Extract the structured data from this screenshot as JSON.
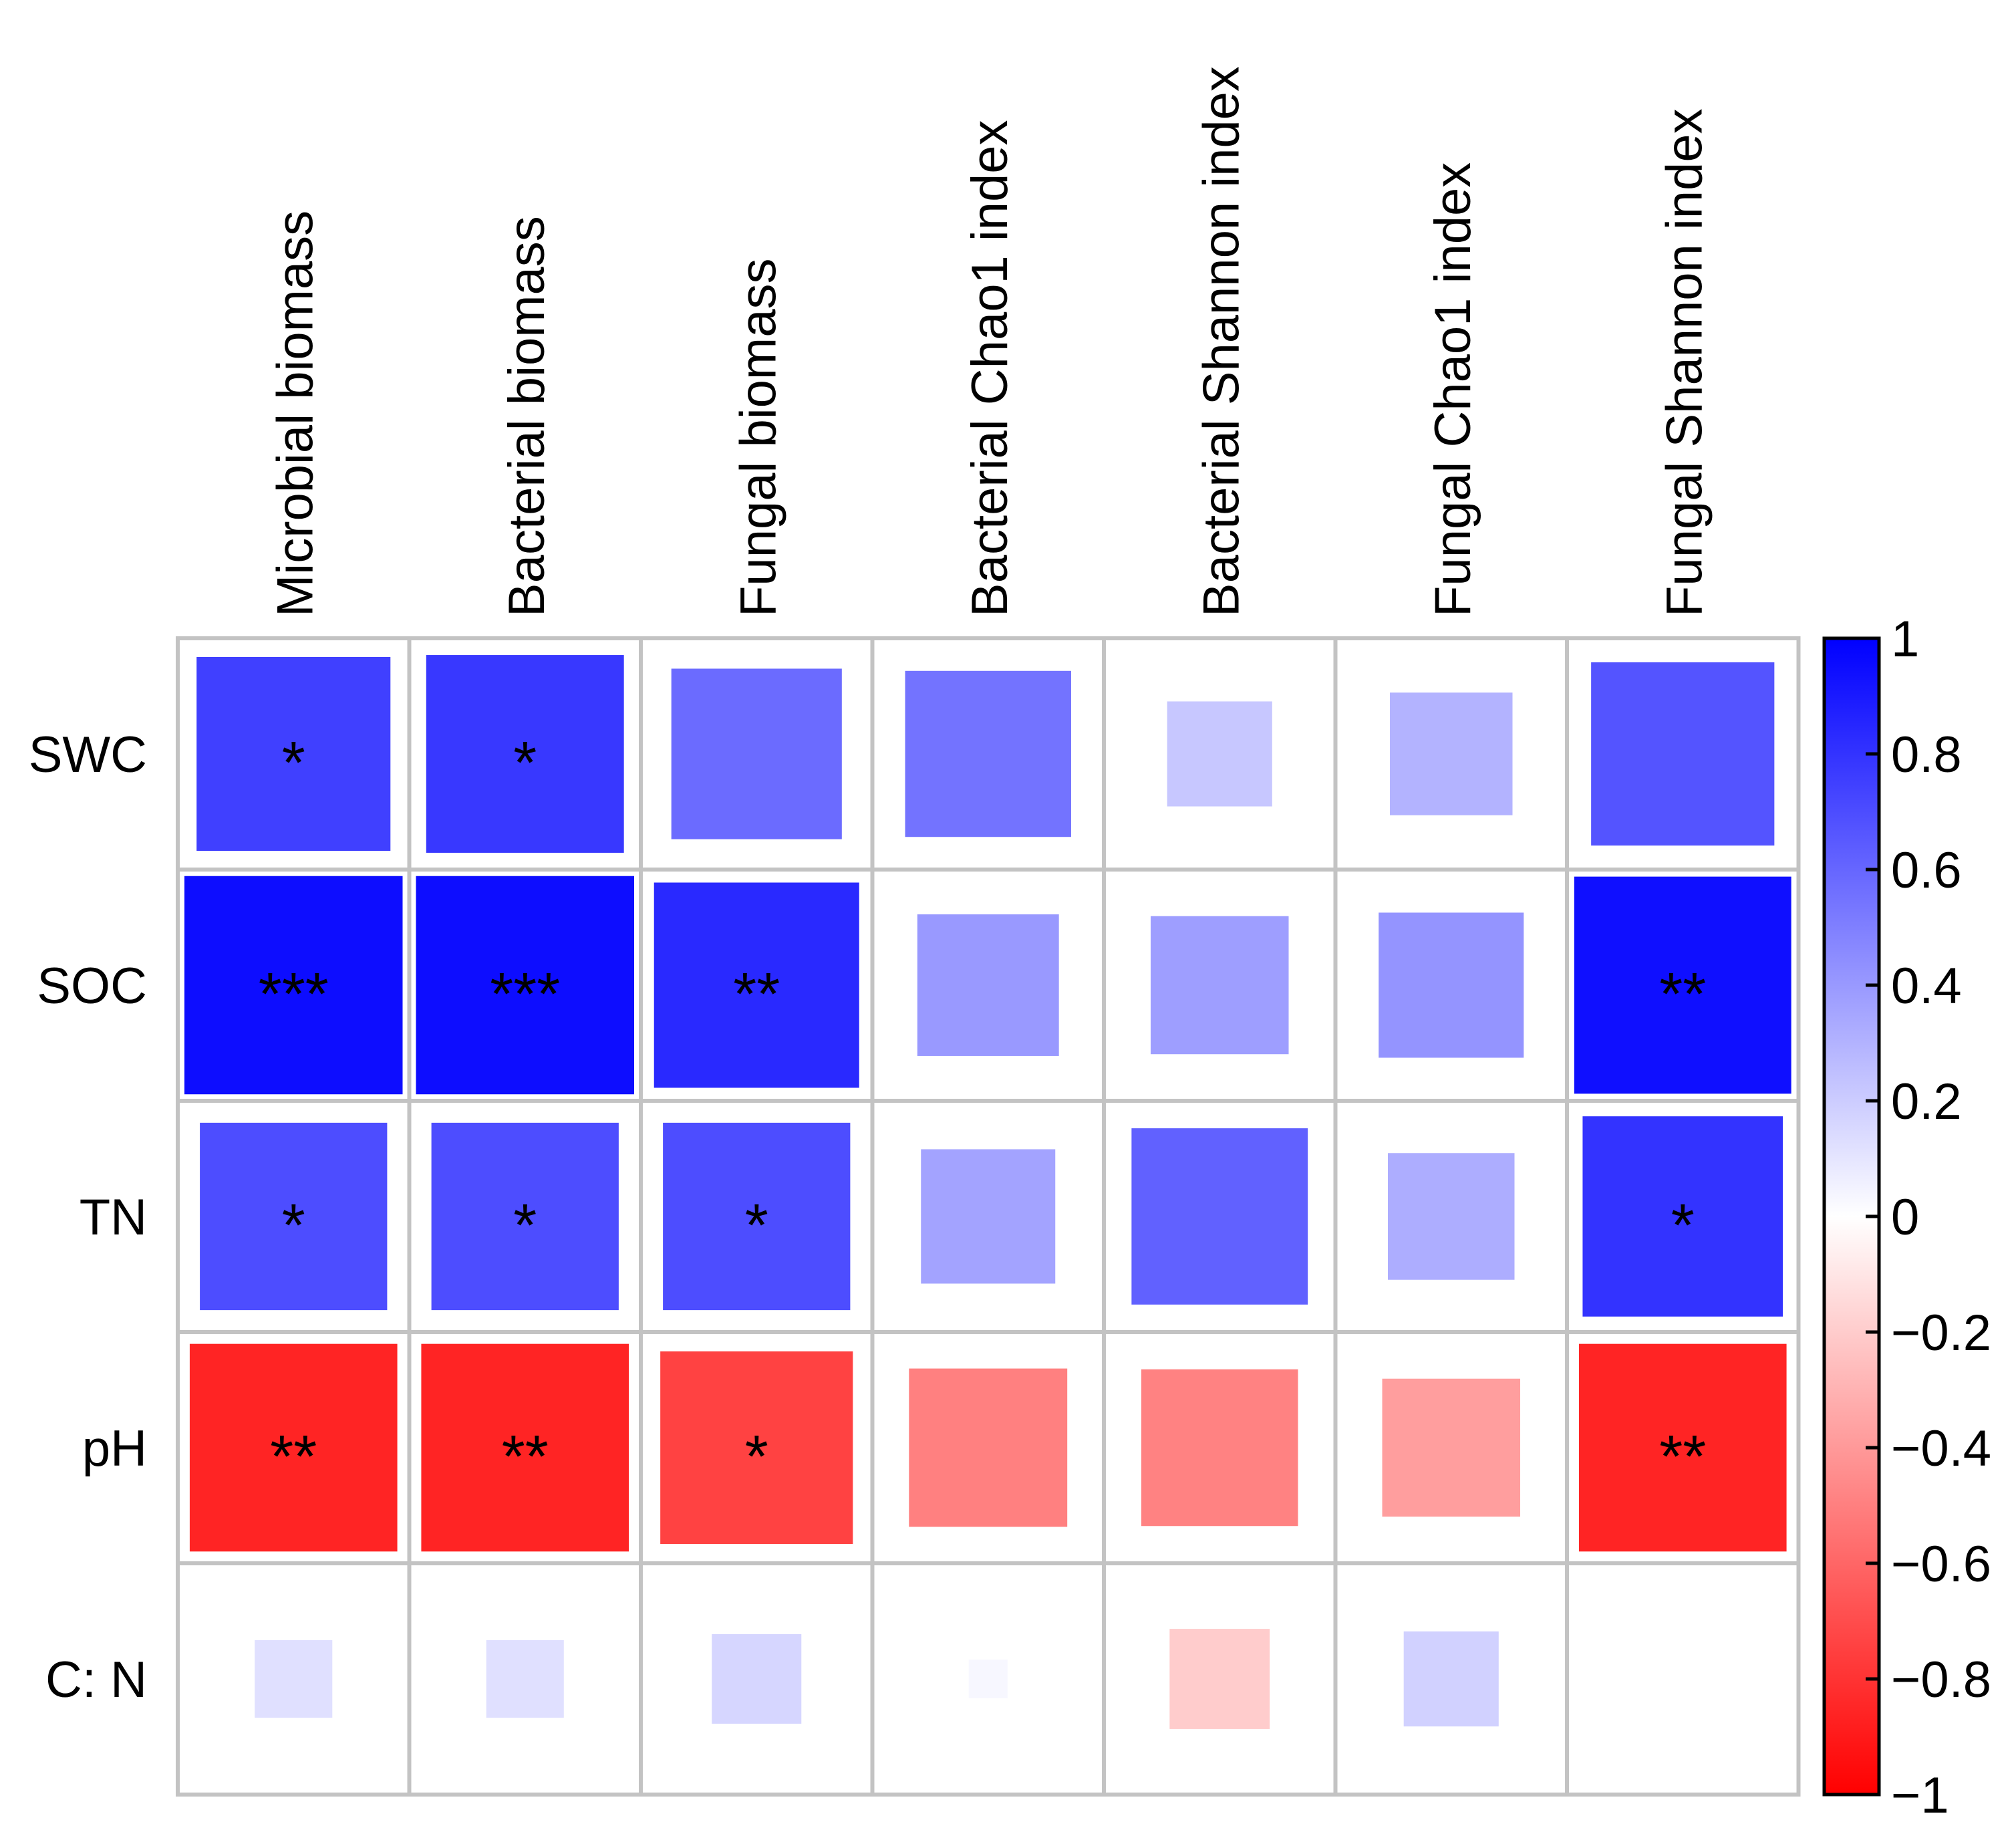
{
  "chart_data": {
    "type": "heatmap",
    "title": "",
    "xlabel": "",
    "ylabel": "",
    "columns": [
      "Microbial biomass",
      "Bacterial biomass",
      "Fungal biomass",
      "Bacterial Chao1 index",
      "Bacterial Shannon index",
      "Fungal Chao1 index",
      "Fungal Shannon index"
    ],
    "rows": [
      "SWC",
      "SOC",
      "TN",
      "pH",
      "C: N"
    ],
    "values": [
      [
        0.75,
        0.78,
        0.58,
        0.55,
        0.22,
        0.3,
        0.67
      ],
      [
        0.95,
        0.95,
        0.84,
        0.4,
        0.38,
        0.42,
        0.94
      ],
      [
        0.7,
        0.7,
        0.7,
        0.36,
        0.62,
        0.32,
        0.8
      ],
      [
        -0.86,
        -0.86,
        -0.74,
        -0.5,
        -0.49,
        -0.38,
        -0.86
      ],
      [
        0.12,
        0.12,
        0.16,
        0.03,
        -0.2,
        0.18,
        0.0
      ]
    ],
    "significance": [
      [
        "*",
        "*",
        "",
        "",
        "",
        "",
        ""
      ],
      [
        "***",
        "***",
        "**",
        "",
        "",
        "",
        "**"
      ],
      [
        "*",
        "*",
        "*",
        "",
        "",
        "",
        "*"
      ],
      [
        "**",
        "**",
        "*",
        "",
        "",
        "",
        "**"
      ],
      [
        "",
        "",
        "",
        "",
        "",
        "",
        ""
      ]
    ],
    "colorbar": {
      "range": [
        -1,
        1
      ],
      "ticks": [
        1,
        0.8,
        0.6,
        0.4,
        0.2,
        0,
        -0.2,
        -0.4,
        -0.6,
        -0.8,
        -1
      ],
      "tick_labels": [
        "1",
        "0.8",
        "0.6",
        "0.4",
        "0.2",
        "0",
        "−0.2",
        "−0.4",
        "−0.6",
        "−0.8",
        "−1"
      ],
      "placement": "right",
      "positive_color": "#0000ff",
      "neutral_color": "#ffffff",
      "negative_color": "#ff0000"
    },
    "grid": true
  }
}
